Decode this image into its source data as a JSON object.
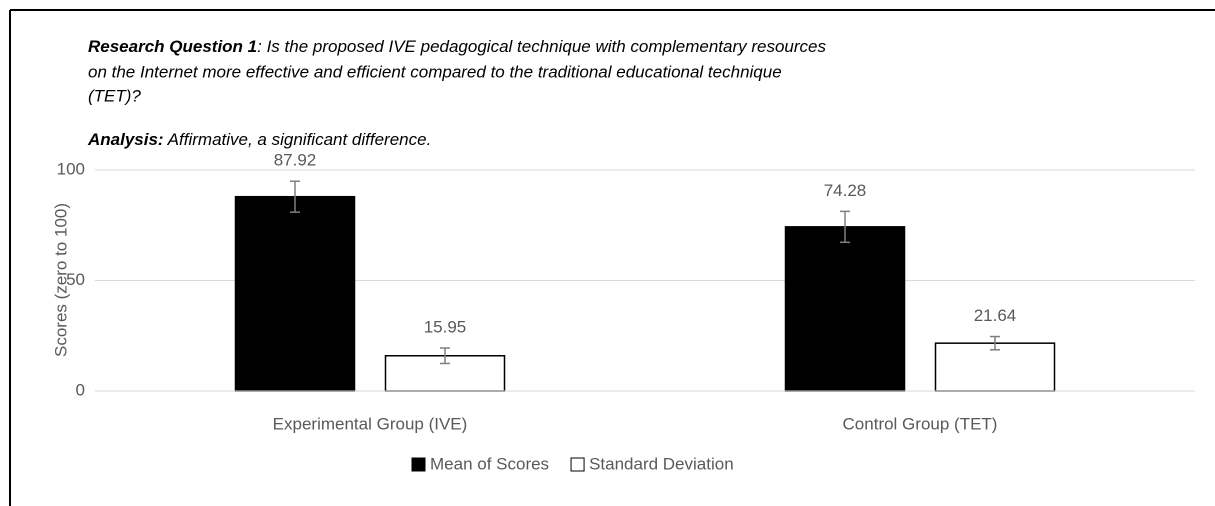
{
  "header": {
    "question_label": "Research Question 1",
    "question_lines": [
      ": Is the proposed IVE pedagogical technique with complementary resources",
      "on the Internet more effective and efficient compared to the traditional educational technique",
      "(TET)?"
    ],
    "analysis_label": "Analysis:",
    "analysis_text": " Affirmative, a significant difference."
  },
  "chart_data": {
    "type": "bar",
    "y_label": "Scores (zero to 100)",
    "categories": [
      "Experimental Group (IVE)",
      "Control Group (TET)"
    ],
    "series": [
      {
        "name": "Mean of Scores",
        "color": "#000000",
        "values": [
          87.92,
          74.28
        ],
        "errors": [
          7,
          7
        ]
      },
      {
        "name": "Standard Deviation",
        "color": "#ffffff",
        "values": [
          15.95,
          21.64
        ],
        "errors": [
          3.5,
          3
        ]
      }
    ],
    "ylim": [
      0,
      100
    ],
    "yticks": [
      0,
      50,
      100
    ],
    "grid": true,
    "legend": "bottom"
  }
}
